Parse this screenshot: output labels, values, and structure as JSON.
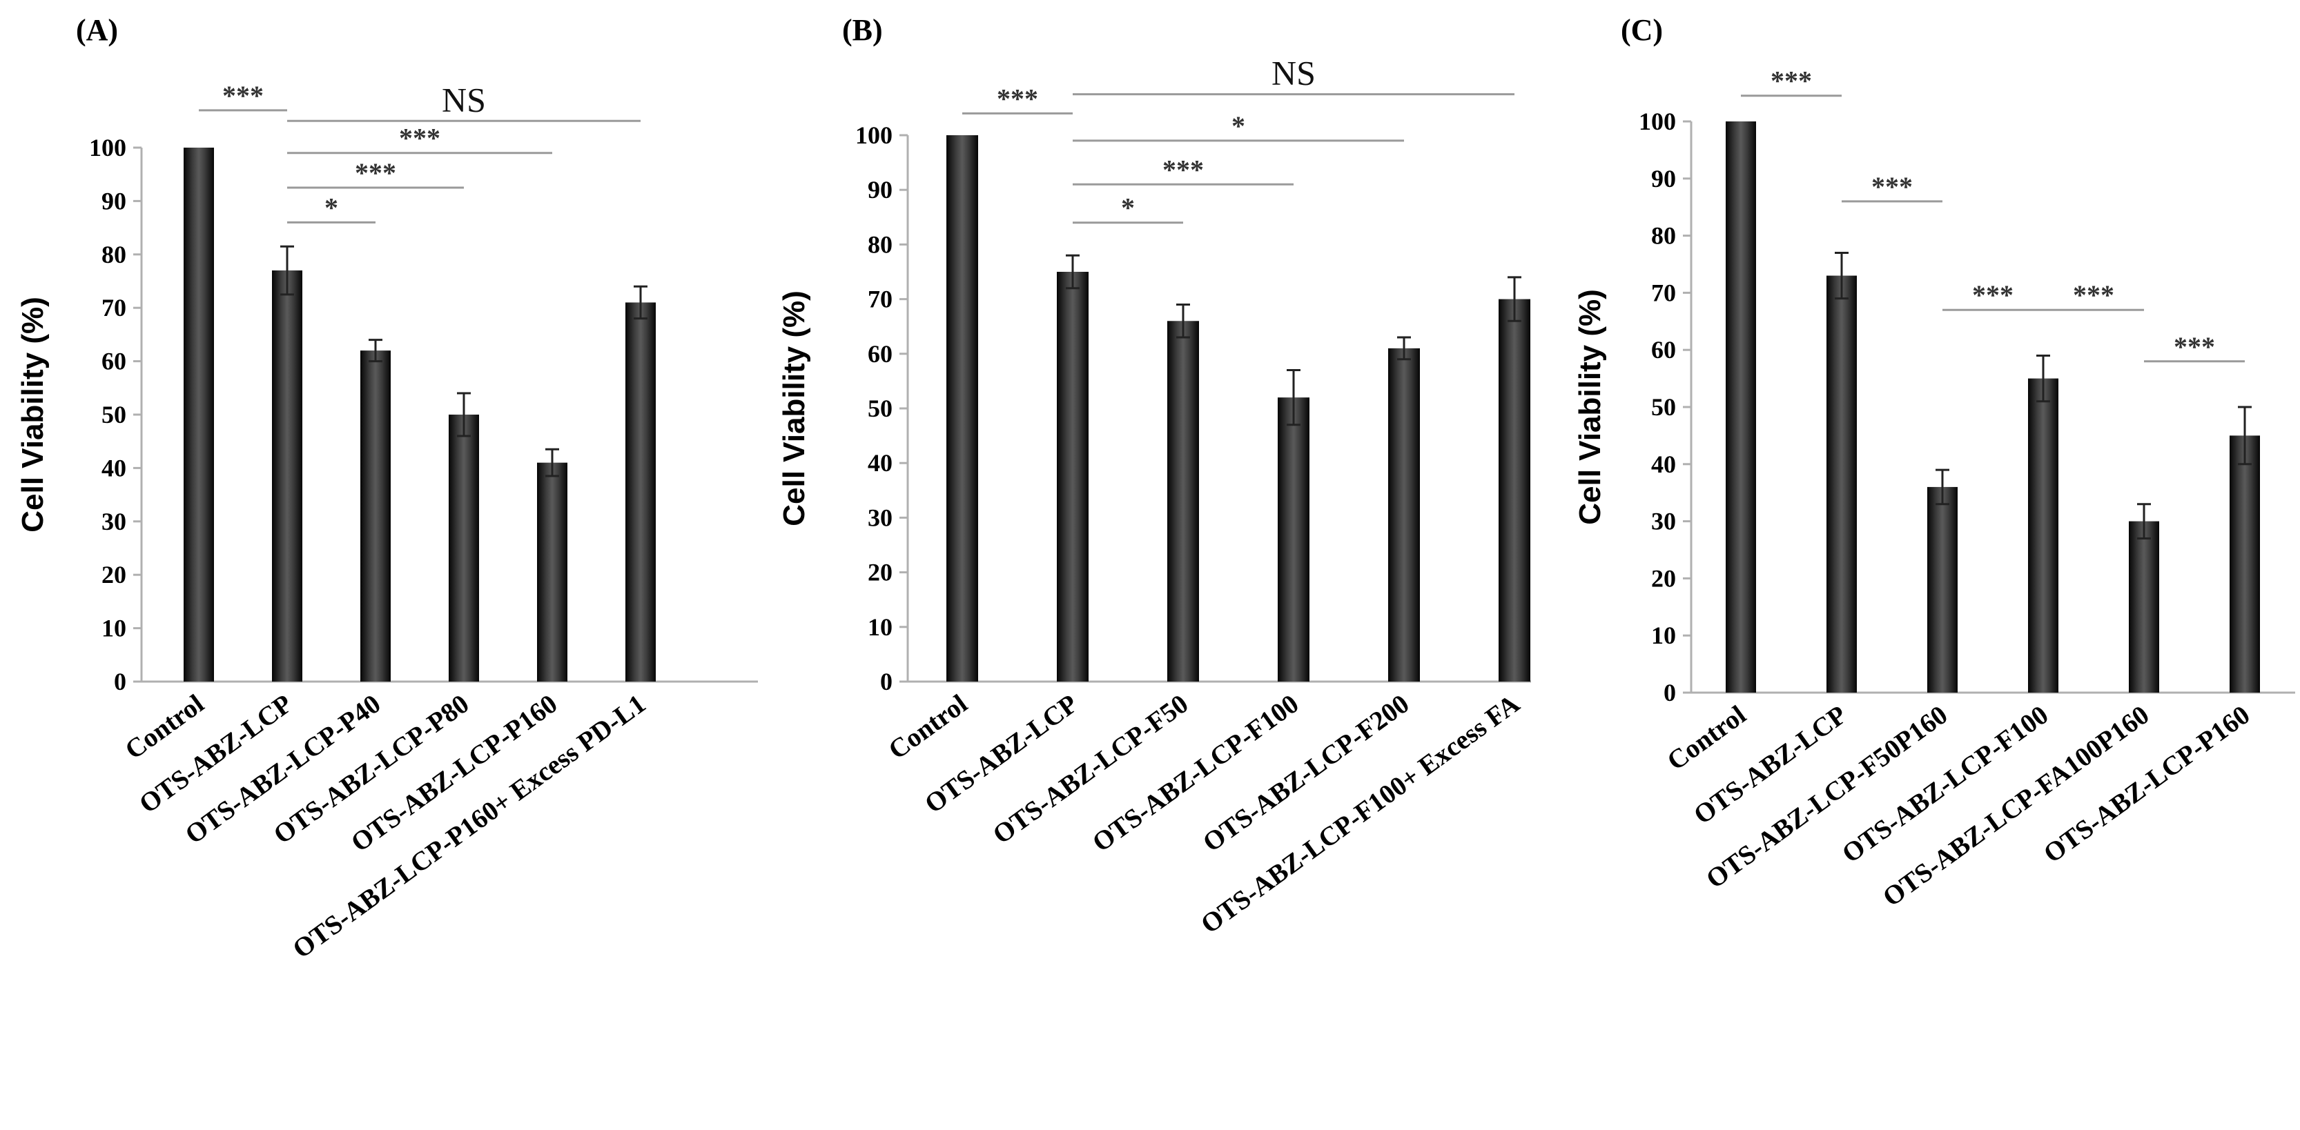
{
  "chart_data": [
    {
      "type": "bar",
      "panel": "(A)",
      "ylabel": "Cell Viability (%)",
      "ylim": [
        0,
        100
      ],
      "yticks": [
        0,
        10,
        20,
        30,
        40,
        50,
        60,
        70,
        80,
        90,
        100
      ],
      "categories": [
        "Control",
        "OTS-ABZ-LCP",
        "OTS-ABZ-LCP-P40",
        "OTS-ABZ-LCP-P80",
        "OTS-ABZ-LCP-P160",
        "OTS-ABZ-LCP-P160+ Excess PD-L1"
      ],
      "values": [
        100,
        77,
        62,
        50,
        41,
        71
      ],
      "errors": [
        0,
        4.5,
        2,
        4,
        2.5,
        3
      ],
      "significance": [
        {
          "from": 0,
          "to": 1,
          "label": "***",
          "y": 107
        },
        {
          "from": 1,
          "to": 2,
          "label": "*",
          "y": 86
        },
        {
          "from": 1,
          "to": 3,
          "label": "***",
          "y": 92.5
        },
        {
          "from": 1,
          "to": 4,
          "label": "***",
          "y": 99
        },
        {
          "from": 1,
          "to": 5,
          "label": "NS",
          "y": 105
        }
      ]
    },
    {
      "type": "bar",
      "panel": "(B)",
      "ylabel": "Cell Viability (%)",
      "ylim": [
        0,
        100
      ],
      "yticks": [
        0,
        10,
        20,
        30,
        40,
        50,
        60,
        70,
        80,
        90,
        100
      ],
      "categories": [
        "Control",
        "OTS-ABZ-LCP",
        "OTS-ABZ-LCP-F50",
        "OTS-ABZ-LCP-F100",
        "OTS-ABZ-LCP-F200",
        "OTS-ABZ-LCP-F100+ Excess FA"
      ],
      "values": [
        100,
        75,
        66,
        52,
        61,
        70
      ],
      "errors": [
        0,
        3,
        3,
        5,
        2,
        4
      ],
      "significance": [
        {
          "from": 0,
          "to": 1,
          "label": "***",
          "y": 104
        },
        {
          "from": 1,
          "to": 2,
          "label": "*",
          "y": 84
        },
        {
          "from": 1,
          "to": 3,
          "label": "***",
          "y": 91
        },
        {
          "from": 1,
          "to": 4,
          "label": "*",
          "y": 99
        },
        {
          "from": 1,
          "to": 5,
          "label": "NS",
          "y": 107.5
        }
      ]
    },
    {
      "type": "bar",
      "panel": "(C)",
      "ylabel": "Cell Viability (%)",
      "ylim": [
        0,
        100
      ],
      "yticks": [
        0,
        10,
        20,
        30,
        40,
        50,
        60,
        70,
        80,
        90,
        100
      ],
      "categories": [
        "Control",
        "OTS-ABZ-LCP",
        "OTS-ABZ-LCP-F50P160",
        "OTS-ABZ-LCP-F100",
        "OTS-ABZ-LCP-FA100P160",
        "OTS-ABZ-LCP-P160"
      ],
      "values": [
        100,
        73,
        36,
        55,
        30,
        45
      ],
      "errors": [
        0,
        4,
        3,
        4,
        3,
        5
      ],
      "significance": [
        {
          "from": 0,
          "to": 1,
          "label": "***",
          "y": 104.5
        },
        {
          "from": 1,
          "to": 2,
          "label": "***",
          "y": 86
        },
        {
          "from": 2,
          "to": 3,
          "label": "***",
          "y": 67
        },
        {
          "from": 3,
          "to": 4,
          "label": "***",
          "y": 67
        },
        {
          "from": 4,
          "to": 5,
          "label": "***",
          "y": 58
        }
      ]
    }
  ]
}
